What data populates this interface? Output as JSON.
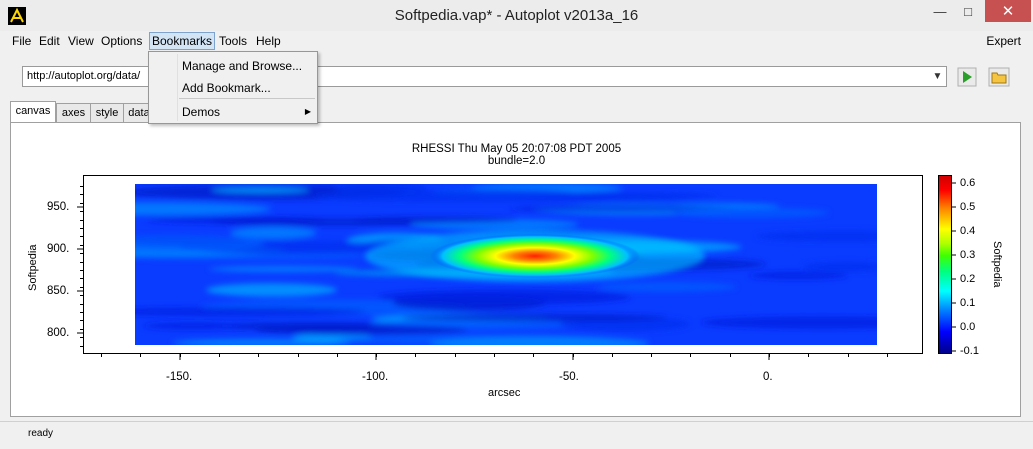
{
  "window": {
    "title": "Softpedia.vap* - Autoplot v2013a_16"
  },
  "menu": {
    "items": [
      "File",
      "Edit",
      "View",
      "Options",
      "Bookmarks",
      "Tools",
      "Help"
    ],
    "expert": "Expert"
  },
  "url": {
    "value": "http://autoplot.org/data/"
  },
  "tabs": [
    "canvas",
    "axes",
    "style",
    "data"
  ],
  "bookmarks_menu": {
    "items": [
      "Manage and Browse...",
      "Add Bookmark...",
      "Demos"
    ]
  },
  "plot": {
    "title_line1": "RHESSI Thu May 05 20:07:08 PDT 2005",
    "title_line2": "bundle=2.0",
    "xlabel": "arcsec",
    "ylabel": "Softpedia",
    "zlabel": "Softpedia",
    "x_ticks": [
      "-150.",
      "-100.",
      "-50.",
      "0."
    ],
    "y_ticks": [
      "950.",
      "900.",
      "850.",
      "800."
    ],
    "z_ticks": [
      "0.6",
      "0.5",
      "0.4",
      "0.3",
      "0.2",
      "0.1",
      "0.0",
      "-0.1"
    ]
  },
  "status": {
    "text": "ready"
  },
  "chart_data": {
    "type": "heatmap",
    "title": "RHESSI Thu May 05 20:07:08 PDT 2005\nbundle=2.0",
    "xlabel": "arcsec",
    "ylabel": "Softpedia",
    "zlabel": "Softpedia",
    "xlim": [
      -173,
      40
    ],
    "ylim": [
      780,
      985
    ],
    "zlim": [
      -0.12,
      0.62
    ],
    "data_extent": {
      "x": [
        -160,
        28
      ],
      "y": [
        785,
        975
      ]
    },
    "peak": {
      "x": -60,
      "y": 897,
      "z": 0.6
    },
    "colormap": "rainbow",
    "colors": {
      "low": "#00008b",
      "mid": "#00ff80",
      "high": "#d00000"
    }
  }
}
